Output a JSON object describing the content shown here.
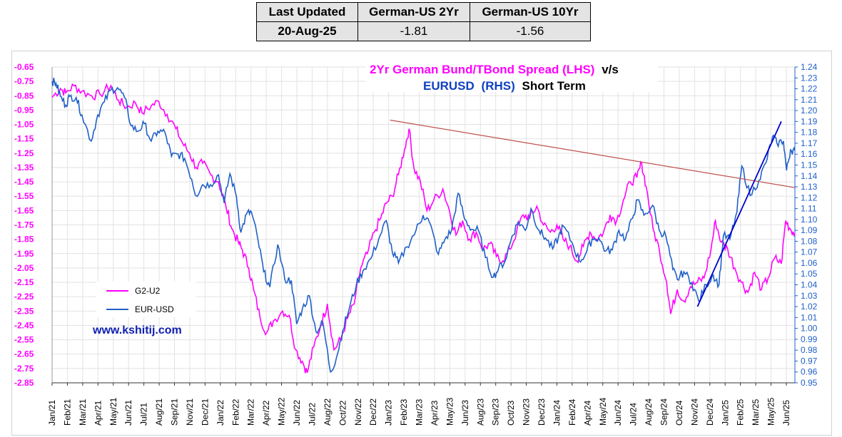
{
  "summary": {
    "headers": [
      "Last Updated",
      "German-US 2Yr",
      "German-US 10Yr"
    ],
    "values": [
      "20-Aug-25",
      "-1.81",
      "-1.56"
    ]
  },
  "chart_data": {
    "type": "line",
    "title_line1": "2Yr German Bund/TBond Spread (LHS)",
    "title_line1_suffix": "v/s",
    "title_line2_a": "EURUSD",
    "title_line2_b": "(RHS)",
    "title_line2_c": "Short Term",
    "watermark": "www.kshitij.com",
    "legend_position": "mid-left",
    "grid": true,
    "colors": {
      "g2u2": "#ff00ff",
      "eurusd": "#2060c8",
      "left_axis": "#ff00ff",
      "right_axis": "#2060c8",
      "resistance": "#c05050",
      "trend": "#0000cc"
    },
    "x_tick_labels": [
      "Jan/21",
      "Feb/21",
      "Mar/21",
      "Apr/21",
      "May/21",
      "Jun/21",
      "Jul/21",
      "Aug/21",
      "Sep/21",
      "Nov/21",
      "Dec/21",
      "Jan/22",
      "Feb/22",
      "Mar/22",
      "Apr/22",
      "May/22",
      "Jun/22",
      "Jul/22",
      "Aug/22",
      "Oct/22",
      "Nov/22",
      "Dec/22",
      "Jan/23",
      "Feb/23",
      "Mar/23",
      "Apr/23",
      "May/23",
      "Jun/23",
      "Aug/23",
      "Sep/23",
      "Oct/23",
      "Nov/23",
      "Dec/23",
      "Jan/24",
      "Feb/24",
      "Apr/24",
      "May/24",
      "Jun/24",
      "Jul/24",
      "Aug/24",
      "Sep/24",
      "Oct/24",
      "Nov/24",
      "Dec/24",
      "Jan/25",
      "Feb/25",
      "Mar/25",
      "May/25",
      "Jun/25"
    ],
    "y_left": {
      "range": [
        -2.85,
        -0.65
      ],
      "ticks": [
        "-0.65",
        "-0.75",
        "-0.85",
        "-0.95",
        "-1.05",
        "-1.15",
        "-1.25",
        "-1.35",
        "-1.45",
        "-1.55",
        "-1.65",
        "-1.75",
        "-1.85",
        "-1.95",
        "-2.05",
        "-2.15",
        "-2.25",
        "-2.35",
        "-2.45",
        "-2.55",
        "-2.65",
        "-2.75",
        "-2.85"
      ]
    },
    "y_right": {
      "range": [
        0.95,
        1.24
      ],
      "ticks": [
        "1.24",
        "1.23",
        "1.22",
        "1.21",
        "1.20",
        "1.19",
        "1.18",
        "1.17",
        "1.16",
        "1.15",
        "1.14",
        "1.13",
        "1.12",
        "1.11",
        "1.10",
        "1.09",
        "1.08",
        "1.07",
        "1.06",
        "1.05",
        "1.04",
        "1.03",
        "1.02",
        "1.01",
        "1.00",
        "0.99",
        "0.98",
        "0.97",
        "0.96",
        "0.95"
      ]
    },
    "x_range": [
      "2021-01-01",
      "2025-08-20"
    ],
    "series": [
      {
        "name": "G2-U2",
        "axis": "left",
        "points": [
          [
            "2021-01-01",
            -0.86
          ],
          [
            "2021-01-20",
            -0.8
          ],
          [
            "2021-02-01",
            -0.83
          ],
          [
            "2021-02-20",
            -0.78
          ],
          [
            "2021-03-10",
            -0.82
          ],
          [
            "2021-04-01",
            -0.85
          ],
          [
            "2021-04-20",
            -0.84
          ],
          [
            "2021-05-15",
            -0.78
          ],
          [
            "2021-06-01",
            -0.88
          ],
          [
            "2021-06-20",
            -0.93
          ],
          [
            "2021-07-10",
            -0.9
          ],
          [
            "2021-07-25",
            -0.97
          ],
          [
            "2021-08-15",
            -0.92
          ],
          [
            "2021-09-01",
            -0.89
          ],
          [
            "2021-09-20",
            -0.98
          ],
          [
            "2021-10-10",
            -1.08
          ],
          [
            "2021-10-25",
            -1.18
          ],
          [
            "2021-11-10",
            -1.25
          ],
          [
            "2021-11-25",
            -1.35
          ],
          [
            "2021-12-10",
            -1.32
          ],
          [
            "2021-12-28",
            -1.4
          ],
          [
            "2022-01-15",
            -1.45
          ],
          [
            "2022-02-01",
            -1.62
          ],
          [
            "2022-02-15",
            -1.78
          ],
          [
            "2022-03-01",
            -1.87
          ],
          [
            "2022-03-10",
            -1.92
          ],
          [
            "2022-03-25",
            -2.05
          ],
          [
            "2022-04-05",
            -2.2
          ],
          [
            "2022-04-20",
            -2.4
          ],
          [
            "2022-05-05",
            -2.5
          ],
          [
            "2022-05-20",
            -2.42
          ],
          [
            "2022-06-10",
            -2.35
          ],
          [
            "2022-06-25",
            -2.38
          ],
          [
            "2022-07-10",
            -2.62
          ],
          [
            "2022-07-25",
            -2.7
          ],
          [
            "2022-08-05",
            -2.78
          ],
          [
            "2022-08-20",
            -2.6
          ],
          [
            "2022-09-05",
            -2.45
          ],
          [
            "2022-09-20",
            -2.3
          ],
          [
            "2022-10-05",
            -2.62
          ],
          [
            "2022-10-20",
            -2.55
          ],
          [
            "2022-11-05",
            -2.4
          ],
          [
            "2022-11-20",
            -2.3
          ],
          [
            "2022-12-05",
            -2.05
          ],
          [
            "2022-12-20",
            -1.95
          ],
          [
            "2023-01-05",
            -1.8
          ],
          [
            "2023-01-20",
            -1.7
          ],
          [
            "2023-02-01",
            -1.6
          ],
          [
            "2023-02-15",
            -1.55
          ],
          [
            "2023-03-01",
            -1.4
          ],
          [
            "2023-03-15",
            -1.22
          ],
          [
            "2023-03-25",
            -1.08
          ],
          [
            "2023-04-05",
            -1.35
          ],
          [
            "2023-04-20",
            -1.45
          ],
          [
            "2023-05-05",
            -1.65
          ],
          [
            "2023-05-20",
            -1.58
          ],
          [
            "2023-06-10",
            -1.5
          ],
          [
            "2023-06-25",
            -1.65
          ],
          [
            "2023-07-10",
            -1.82
          ],
          [
            "2023-07-25",
            -1.72
          ],
          [
            "2023-08-10",
            -1.85
          ],
          [
            "2023-08-25",
            -1.8
          ],
          [
            "2023-09-10",
            -1.92
          ],
          [
            "2023-09-25",
            -1.88
          ],
          [
            "2023-10-10",
            -1.97
          ],
          [
            "2023-10-25",
            -2.0
          ],
          [
            "2023-11-10",
            -1.92
          ],
          [
            "2023-11-25",
            -1.8
          ],
          [
            "2023-12-10",
            -1.68
          ],
          [
            "2023-12-25",
            -1.7
          ],
          [
            "2024-01-10",
            -1.62
          ],
          [
            "2024-01-25",
            -1.75
          ],
          [
            "2024-02-10",
            -1.8
          ],
          [
            "2024-02-25",
            -1.75
          ],
          [
            "2024-03-10",
            -1.85
          ],
          [
            "2024-03-25",
            -1.9
          ],
          [
            "2024-04-10",
            -2.0
          ],
          [
            "2024-04-25",
            -1.9
          ],
          [
            "2024-05-10",
            -1.8
          ],
          [
            "2024-05-25",
            -1.85
          ],
          [
            "2024-06-10",
            -1.8
          ],
          [
            "2024-06-25",
            -1.68
          ],
          [
            "2024-07-10",
            -1.72
          ],
          [
            "2024-07-25",
            -1.58
          ],
          [
            "2024-08-10",
            -1.45
          ],
          [
            "2024-08-25",
            -1.42
          ],
          [
            "2024-09-05",
            -1.32
          ],
          [
            "2024-09-15",
            -1.48
          ],
          [
            "2024-10-01",
            -1.78
          ],
          [
            "2024-10-15",
            -1.92
          ],
          [
            "2024-11-01",
            -2.15
          ],
          [
            "2024-11-10",
            -2.37
          ],
          [
            "2024-11-25",
            -2.2
          ],
          [
            "2024-12-10",
            -2.28
          ],
          [
            "2024-12-25",
            -2.18
          ],
          [
            "2025-01-10",
            -2.15
          ],
          [
            "2025-01-25",
            -2.12
          ],
          [
            "2025-02-10",
            -1.92
          ],
          [
            "2025-02-20",
            -1.72
          ],
          [
            "2025-03-05",
            -1.87
          ],
          [
            "2025-03-20",
            -1.92
          ],
          [
            "2025-04-05",
            -2.05
          ],
          [
            "2025-04-20",
            -2.15
          ],
          [
            "2025-05-05",
            -2.22
          ],
          [
            "2025-05-20",
            -2.08
          ],
          [
            "2025-06-05",
            -2.2
          ],
          [
            "2025-06-20",
            -2.12
          ],
          [
            "2025-07-05",
            -1.98
          ],
          [
            "2025-07-20",
            -2.02
          ],
          [
            "2025-07-30",
            -1.72
          ],
          [
            "2025-08-10",
            -1.78
          ],
          [
            "2025-08-20",
            -1.81
          ]
        ]
      },
      {
        "name": "EUR-USD",
        "axis": "right",
        "points": [
          [
            "2021-01-01",
            1.227
          ],
          [
            "2021-01-10",
            1.225
          ],
          [
            "2021-01-20",
            1.213
          ],
          [
            "2021-02-01",
            1.205
          ],
          [
            "2021-02-10",
            1.213
          ],
          [
            "2021-02-25",
            1.212
          ],
          [
            "2021-03-10",
            1.196
          ],
          [
            "2021-03-31",
            1.172
          ],
          [
            "2021-04-15",
            1.196
          ],
          [
            "2021-04-30",
            1.208
          ],
          [
            "2021-05-15",
            1.219
          ],
          [
            "2021-05-30",
            1.221
          ],
          [
            "2021-06-15",
            1.212
          ],
          [
            "2021-06-30",
            1.186
          ],
          [
            "2021-07-15",
            1.181
          ],
          [
            "2021-07-30",
            1.188
          ],
          [
            "2021-08-15",
            1.172
          ],
          [
            "2021-08-30",
            1.181
          ],
          [
            "2021-09-15",
            1.18
          ],
          [
            "2021-09-30",
            1.158
          ],
          [
            "2021-10-15",
            1.16
          ],
          [
            "2021-10-30",
            1.156
          ],
          [
            "2021-11-15",
            1.137
          ],
          [
            "2021-11-25",
            1.122
          ],
          [
            "2021-12-10",
            1.132
          ],
          [
            "2021-12-28",
            1.132
          ],
          [
            "2022-01-15",
            1.141
          ],
          [
            "2022-01-28",
            1.115
          ],
          [
            "2022-02-10",
            1.142
          ],
          [
            "2022-02-25",
            1.121
          ],
          [
            "2022-03-07",
            1.088
          ],
          [
            "2022-03-20",
            1.105
          ],
          [
            "2022-03-31",
            1.107
          ],
          [
            "2022-04-15",
            1.081
          ],
          [
            "2022-04-28",
            1.052
          ],
          [
            "2022-05-12",
            1.038
          ],
          [
            "2022-05-30",
            1.077
          ],
          [
            "2022-06-15",
            1.045
          ],
          [
            "2022-06-30",
            1.044
          ],
          [
            "2022-07-12",
            1.004
          ],
          [
            "2022-07-25",
            1.018
          ],
          [
            "2022-08-10",
            1.03
          ],
          [
            "2022-08-25",
            0.997
          ],
          [
            "2022-09-10",
            1.005
          ],
          [
            "2022-09-27",
            0.96
          ],
          [
            "2022-10-10",
            0.972
          ],
          [
            "2022-10-25",
            0.998
          ],
          [
            "2022-11-10",
            1.02
          ],
          [
            "2022-11-25",
            1.04
          ],
          [
            "2022-12-10",
            1.053
          ],
          [
            "2022-12-28",
            1.064
          ],
          [
            "2023-01-15",
            1.082
          ],
          [
            "2023-02-01",
            1.099
          ],
          [
            "2023-02-15",
            1.07
          ],
          [
            "2023-03-01",
            1.06
          ],
          [
            "2023-03-20",
            1.075
          ],
          [
            "2023-04-10",
            1.09
          ],
          [
            "2023-04-26",
            1.104
          ],
          [
            "2023-05-10",
            1.098
          ],
          [
            "2023-05-31",
            1.068
          ],
          [
            "2023-06-15",
            1.082
          ],
          [
            "2023-06-30",
            1.09
          ],
          [
            "2023-07-15",
            1.124
          ],
          [
            "2023-07-30",
            1.1
          ],
          [
            "2023-08-15",
            1.091
          ],
          [
            "2023-08-30",
            1.09
          ],
          [
            "2023-09-15",
            1.065
          ],
          [
            "2023-10-03",
            1.047
          ],
          [
            "2023-10-15",
            1.055
          ],
          [
            "2023-10-30",
            1.062
          ],
          [
            "2023-11-15",
            1.085
          ],
          [
            "2023-11-29",
            1.098
          ],
          [
            "2023-12-15",
            1.09
          ],
          [
            "2023-12-28",
            1.11
          ],
          [
            "2024-01-15",
            1.09
          ],
          [
            "2024-01-30",
            1.083
          ],
          [
            "2024-02-15",
            1.073
          ],
          [
            "2024-02-28",
            1.083
          ],
          [
            "2024-03-10",
            1.094
          ],
          [
            "2024-03-30",
            1.079
          ],
          [
            "2024-04-16",
            1.062
          ],
          [
            "2024-04-30",
            1.068
          ],
          [
            "2024-05-15",
            1.082
          ],
          [
            "2024-05-30",
            1.083
          ],
          [
            "2024-06-15",
            1.071
          ],
          [
            "2024-06-30",
            1.072
          ],
          [
            "2024-07-15",
            1.09
          ],
          [
            "2024-07-30",
            1.082
          ],
          [
            "2024-08-15",
            1.101
          ],
          [
            "2024-08-26",
            1.118
          ],
          [
            "2024-09-10",
            1.104
          ],
          [
            "2024-09-30",
            1.113
          ],
          [
            "2024-10-15",
            1.09
          ],
          [
            "2024-10-30",
            1.085
          ],
          [
            "2024-11-15",
            1.054
          ],
          [
            "2024-11-25",
            1.045
          ],
          [
            "2024-12-10",
            1.052
          ],
          [
            "2024-12-28",
            1.042
          ],
          [
            "2025-01-13",
            1.025
          ],
          [
            "2025-01-30",
            1.04
          ],
          [
            "2025-02-15",
            1.049
          ],
          [
            "2025-02-28",
            1.04
          ],
          [
            "2025-03-10",
            1.085
          ],
          [
            "2025-03-25",
            1.082
          ],
          [
            "2025-04-10",
            1.107
          ],
          [
            "2025-04-21",
            1.149
          ],
          [
            "2025-05-10",
            1.122
          ],
          [
            "2025-05-30",
            1.136
          ],
          [
            "2025-06-15",
            1.152
          ],
          [
            "2025-06-30",
            1.176
          ],
          [
            "2025-07-10",
            1.17
          ],
          [
            "2025-07-25",
            1.172
          ],
          [
            "2025-08-01",
            1.145
          ],
          [
            "2025-08-10",
            1.164
          ],
          [
            "2025-08-20",
            1.163
          ]
        ]
      }
    ],
    "annotations": [
      {
        "name": "resistance-line",
        "axis": "left",
        "from": [
          "2023-02-10",
          -1.02
        ],
        "to": [
          "2025-08-20",
          -1.49
        ]
      },
      {
        "name": "eurusd-trend-line",
        "axis": "right",
        "from": [
          "2025-01-10",
          1.02
        ],
        "to": [
          "2025-07-20",
          1.19
        ]
      }
    ]
  }
}
